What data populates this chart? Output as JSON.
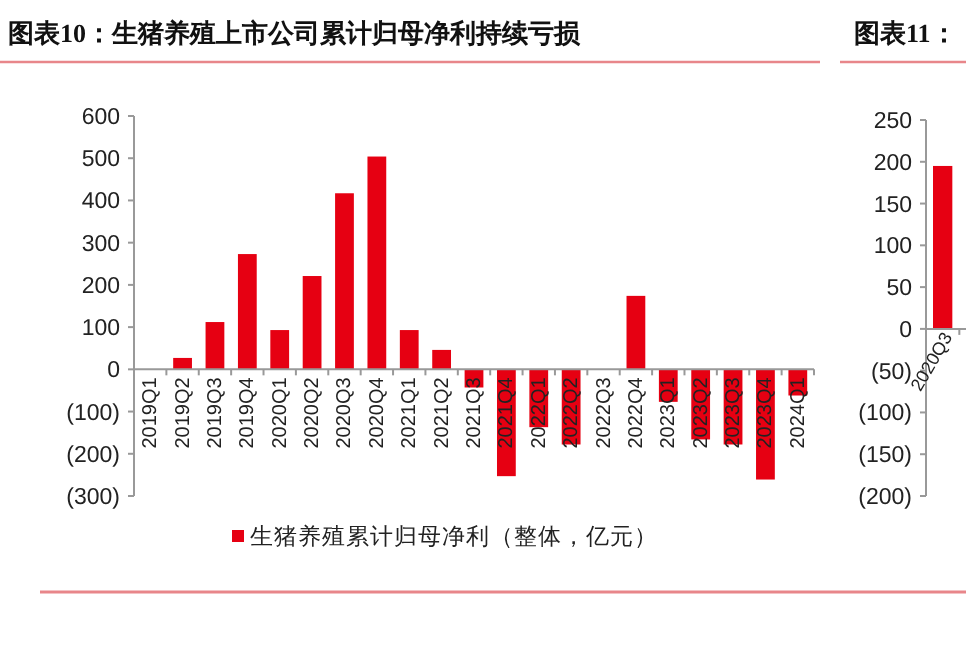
{
  "chart_data": [
    {
      "type": "bar",
      "title": "图表10：生猪养殖上市公司累计归母净利持续亏损",
      "categories": [
        "2019Q1",
        "2019Q2",
        "2019Q3",
        "2019Q4",
        "2020Q1",
        "2020Q2",
        "2020Q3",
        "2020Q4",
        "2021Q1",
        "2021Q2",
        "2021Q3",
        "2021Q4",
        "2022Q1",
        "2022Q2",
        "2022Q3",
        "2022Q4",
        "2023Q1",
        "2023Q2",
        "2023Q3",
        "2023Q4",
        "2024Q1"
      ],
      "series": [
        {
          "name": "生猪养殖累计归母净利（整体，亿元）",
          "color": "#e60012",
          "values": [
            0,
            27,
            112,
            273,
            93,
            221,
            417,
            504,
            93,
            46,
            -43,
            -253,
            -137,
            -178,
            0,
            174,
            -77,
            -166,
            -178,
            -261,
            -62
          ]
        }
      ],
      "ylim": [
        -300,
        600
      ],
      "yticks": [
        {
          "value": -300,
          "label": "(300)"
        },
        {
          "value": -200,
          "label": "(200)"
        },
        {
          "value": -100,
          "label": "(100)"
        },
        0,
        100,
        200,
        300,
        400,
        500,
        600
      ],
      "grid": false,
      "legend": "bottom"
    },
    {
      "type": "bar",
      "title": "图表11：",
      "categories": [
        "2020Q3"
      ],
      "series": [
        {
          "color": "#e60012",
          "values": [
            195
          ]
        }
      ],
      "ylim": [
        -200,
        250
      ],
      "yticks": [
        {
          "value": -200,
          "label": "(200)"
        },
        {
          "value": -150,
          "label": "(150)"
        },
        {
          "value": -100,
          "label": "(100)"
        },
        {
          "value": -50,
          "label": "(50)"
        },
        0,
        50,
        100,
        150,
        200,
        250
      ],
      "grid": false
    }
  ]
}
